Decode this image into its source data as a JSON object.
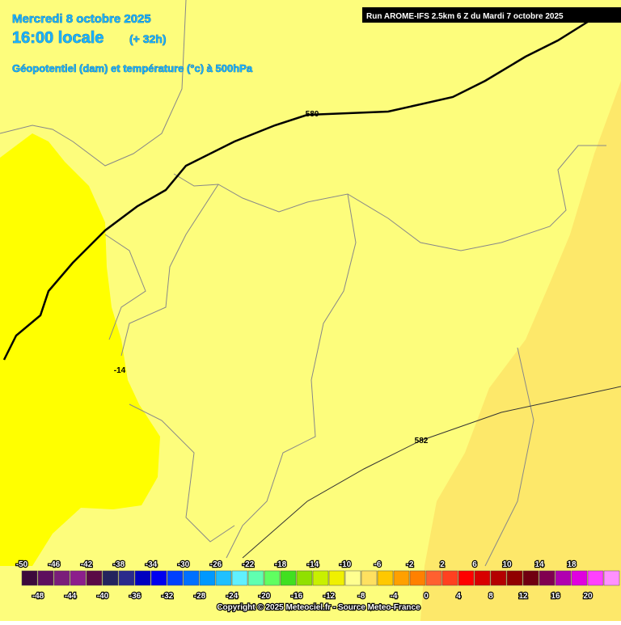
{
  "header": {
    "date": "Mercredi 8 octobre 2025",
    "time": "16:00 locale",
    "lead": "(+ 32h)",
    "subtitle": "Géopotentiel (dam) et température (°c) à 500hPa",
    "run": "Run AROME-IFS 2.5km 6 Z du Mardi 7 octobre 2025"
  },
  "map": {
    "contour_labels": [
      "580",
      "582",
      "-14"
    ]
  },
  "colorbar": {
    "colors": [
      "#3c0a3c",
      "#5e0f5e",
      "#7a1e7a",
      "#8c1e8c",
      "#5a0a46",
      "#24245e",
      "#2a2a8c",
      "#0000c0",
      "#0000f0",
      "#0040ff",
      "#0070ff",
      "#0098ff",
      "#20c0ff",
      "#60f0ff",
      "#60ffb0",
      "#60ff60",
      "#40e020",
      "#90e000",
      "#c8f000",
      "#f0f000",
      "#ffff90",
      "#ffe060",
      "#ffc800",
      "#ffa000",
      "#ff8000",
      "#ff6030",
      "#ff4020",
      "#ff0000",
      "#d80000",
      "#b40000",
      "#900000",
      "#700010",
      "#800050",
      "#b000b0",
      "#e000e0",
      "#ff40ff",
      "#ff90ff"
    ],
    "top_labels": [
      -50,
      -46,
      -42,
      -38,
      -34,
      -30,
      -26,
      -22,
      -18,
      -14,
      -10,
      -6,
      -2,
      2,
      6,
      10,
      14,
      18
    ],
    "bottom_labels": [
      -48,
      -44,
      -40,
      -36,
      -32,
      -28,
      -24,
      -20,
      -16,
      -12,
      -8,
      -4,
      0,
      4,
      8,
      12,
      16,
      20
    ]
  },
  "footer": {
    "copyright": "Copyright © 2025 Meteociel.fr - Source Meteo-France"
  }
}
